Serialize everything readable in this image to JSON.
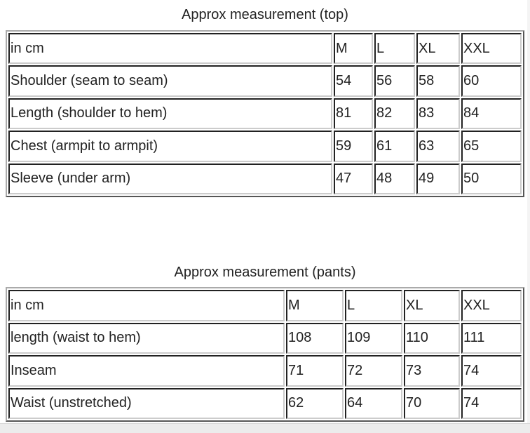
{
  "top": {
    "title": "Approx measurement (top)",
    "header": [
      "in cm",
      "M",
      "L",
      "XL",
      "XXL"
    ],
    "rows": [
      [
        "Shoulder (seam to seam)",
        "54",
        "56",
        "58",
        "60"
      ],
      [
        "Length (shoulder to hem)",
        "81",
        "82",
        "83",
        "84"
      ],
      [
        "Chest (armpit to armpit)",
        "59",
        "61",
        "63",
        "65"
      ],
      [
        "Sleeve (under arm)",
        "47",
        "48",
        "49",
        "50"
      ]
    ]
  },
  "pants": {
    "title": "Approx measurement (pants)",
    "header": [
      "in cm",
      "M",
      "L",
      "XL",
      "XXL"
    ],
    "rows": [
      [
        "length (waist to hem)",
        "108",
        "109",
        "110",
        "111"
      ],
      [
        "Inseam",
        "71",
        "72",
        "73",
        "74"
      ],
      [
        "Waist (unstretched)",
        "62",
        "64",
        "70",
        "74"
      ]
    ]
  }
}
